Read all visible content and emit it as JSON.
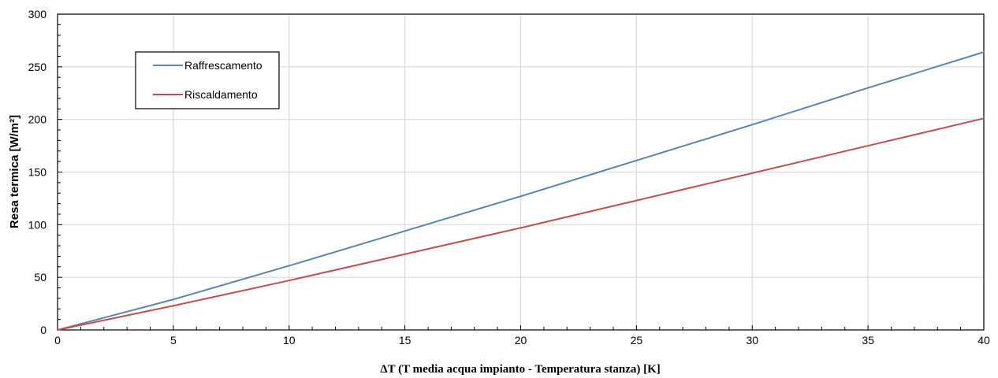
{
  "chart_data": {
    "type": "line",
    "title": "",
    "xlabel": "ΔT (T media acqua impianto - Temperatura stanza) [K]",
    "ylabel": "Resa termica [W/m²]",
    "xlim": [
      0,
      40
    ],
    "ylim": [
      0,
      300
    ],
    "x_ticks": [
      0,
      5,
      10,
      15,
      20,
      25,
      30,
      35,
      40
    ],
    "y_ticks": [
      0,
      50,
      100,
      150,
      200,
      250,
      300
    ],
    "x_minor_step": 1,
    "y_minor_step": 10,
    "grid": "vertical-major",
    "legend_position": "top-left",
    "series": [
      {
        "name": "Raffrescamento",
        "color": "#5b84b1",
        "x": [
          0,
          5,
          10,
          15,
          20,
          25,
          30,
          35,
          40
        ],
        "values": [
          0,
          29,
          61,
          94,
          127,
          161,
          195,
          230,
          264
        ]
      },
      {
        "name": "Riscaldamento",
        "color": "#c0504d",
        "x": [
          0,
          5,
          10,
          15,
          20,
          25,
          30,
          35,
          40
        ],
        "values": [
          0,
          23,
          47,
          72,
          97,
          123,
          149,
          175,
          201
        ]
      }
    ]
  }
}
